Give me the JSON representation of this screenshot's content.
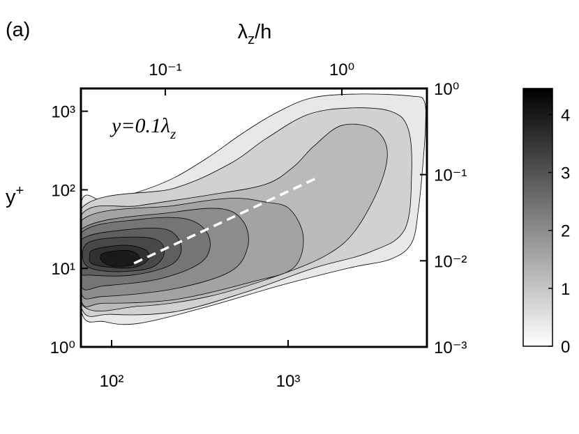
{
  "chart_data": {
    "type": "contour",
    "panel_label": "(a)",
    "ylabel": [
      "y",
      "+"
    ],
    "x2label": [
      "λ",
      "z",
      "/h"
    ],
    "annotation": [
      "y=0.1λ",
      "z"
    ],
    "xscale": "log",
    "yscale": "log",
    "xlim": [
      67,
      6120
    ],
    "xticks": [
      {
        "value": 100,
        "label": "10²"
      },
      {
        "value": 1000,
        "label": "10³"
      }
    ],
    "ylim": [
      1,
      1950
    ],
    "yticks": [
      {
        "value": 1,
        "label": "10⁰"
      },
      {
        "value": 10,
        "label": "10¹"
      },
      {
        "value": 100,
        "label": "10²"
      },
      {
        "value": 1000,
        "label": "10³"
      }
    ],
    "x2lim": [
      0.0333,
      3.03
    ],
    "x2ticks": [
      {
        "value": 0.1,
        "label": "10⁻¹"
      },
      {
        "value": 1,
        "label": "10⁰"
      }
    ],
    "y2lim": [
      0.001,
      1
    ],
    "y2ticks": [
      {
        "value": 0.001,
        "label": "10⁻³"
      },
      {
        "value": 0.01,
        "label": "10⁻²"
      },
      {
        "value": 0.1,
        "label": "10⁻¹"
      },
      {
        "value": 1,
        "label": "10⁰"
      }
    ],
    "colormap": [
      "#ffffff",
      "#000000"
    ],
    "clim": [
      0,
      4.45
    ],
    "cticks": [
      0,
      1,
      2,
      3,
      4
    ],
    "contours": [
      {
        "level": 0.4,
        "x": [
          67,
          91,
          144,
          227,
          357,
          563,
          889,
          1400,
          2650,
          5010,
          5900,
          6010,
          5790,
          5480,
          5010,
          3810,
          2210,
          889,
          357,
          144,
          91,
          67
        ],
        "y": [
          67,
          73,
          95,
          143,
          264,
          540,
          1000,
          1500,
          1660,
          1560,
          1360,
          660,
          195,
          57,
          21,
          13.1,
          10.1,
          6.0,
          3.3,
          2.0,
          2.1,
          3.0
        ]
      },
      {
        "level": 0.8,
        "x": [
          67,
          227,
          470,
          741,
          1280,
          2210,
          3810,
          4790,
          5010,
          4570,
          2900,
          1400,
          563,
          227,
          100,
          67
        ],
        "y": [
          57,
          105,
          216,
          440,
          900,
          1100,
          1000,
          600,
          159,
          31,
          16.1,
          10.1,
          4.9,
          2.8,
          2.6,
          3.3
        ]
      },
      {
        "level": 1.2,
        "x": [
          67,
          144,
          357,
          741,
          1070,
          1400,
          2010,
          3040,
          3640,
          3330,
          2420,
          1680,
          889,
          357,
          144,
          67
        ],
        "y": [
          47,
          63,
          86,
          117,
          195,
          360,
          660,
          600,
          324,
          117,
          31,
          15.1,
          8.2,
          4.4,
          3.3,
          3.6
        ]
      },
      {
        "level": 1.6,
        "x": [
          67,
          227,
          470,
          741,
          1020,
          1220,
          1070,
          618,
          227,
          91,
          67
        ],
        "y": [
          40,
          63,
          78,
          70,
          57,
          25,
          10.1,
          6.7,
          4.0,
          3.6,
          4.0
        ]
      },
      {
        "level": 2.0,
        "x": [
          67,
          227,
          429,
          563,
          590,
          470,
          227,
          91,
          67
        ],
        "y": [
          31,
          52,
          57,
          38,
          18.6,
          9.1,
          5.5,
          4.4,
          4.9
        ]
      },
      {
        "level": 2.4,
        "x": [
          67,
          144,
          272,
          357,
          327,
          189,
          91,
          67
        ],
        "y": [
          28,
          42,
          42,
          25,
          12.3,
          7.4,
          6.0,
          6.0
        ]
      },
      {
        "level": 2.8,
        "x": [
          67,
          120,
          207,
          248,
          217,
          131,
          76,
          67
        ],
        "y": [
          23,
          31,
          31,
          18.6,
          11.1,
          8.2,
          8.2,
          9.1
        ]
      },
      {
        "level": 3.2,
        "x": [
          73,
          120,
          181,
          198,
          165,
          100,
          71
        ],
        "y": [
          21,
          25,
          23,
          15.1,
          10.1,
          9.1,
          11.1
        ]
      },
      {
        "level": 3.6,
        "x": [
          80,
          120,
          158,
          158,
          126,
          80,
          75
        ],
        "y": [
          17.5,
          19.7,
          16.8,
          12.3,
          10.1,
          11.1,
          14.3
        ]
      },
      {
        "level": 4.0,
        "x": [
          91,
          126,
          144,
          131,
          100,
          87
        ],
        "y": [
          15.8,
          16.8,
          13.7,
          11.1,
          10.7,
          12.9
        ]
      }
    ],
    "ridge_line": {
      "color": "#ffffff",
      "x": [
        134,
        1470
      ],
      "y": [
        11.6,
        143
      ]
    }
  }
}
